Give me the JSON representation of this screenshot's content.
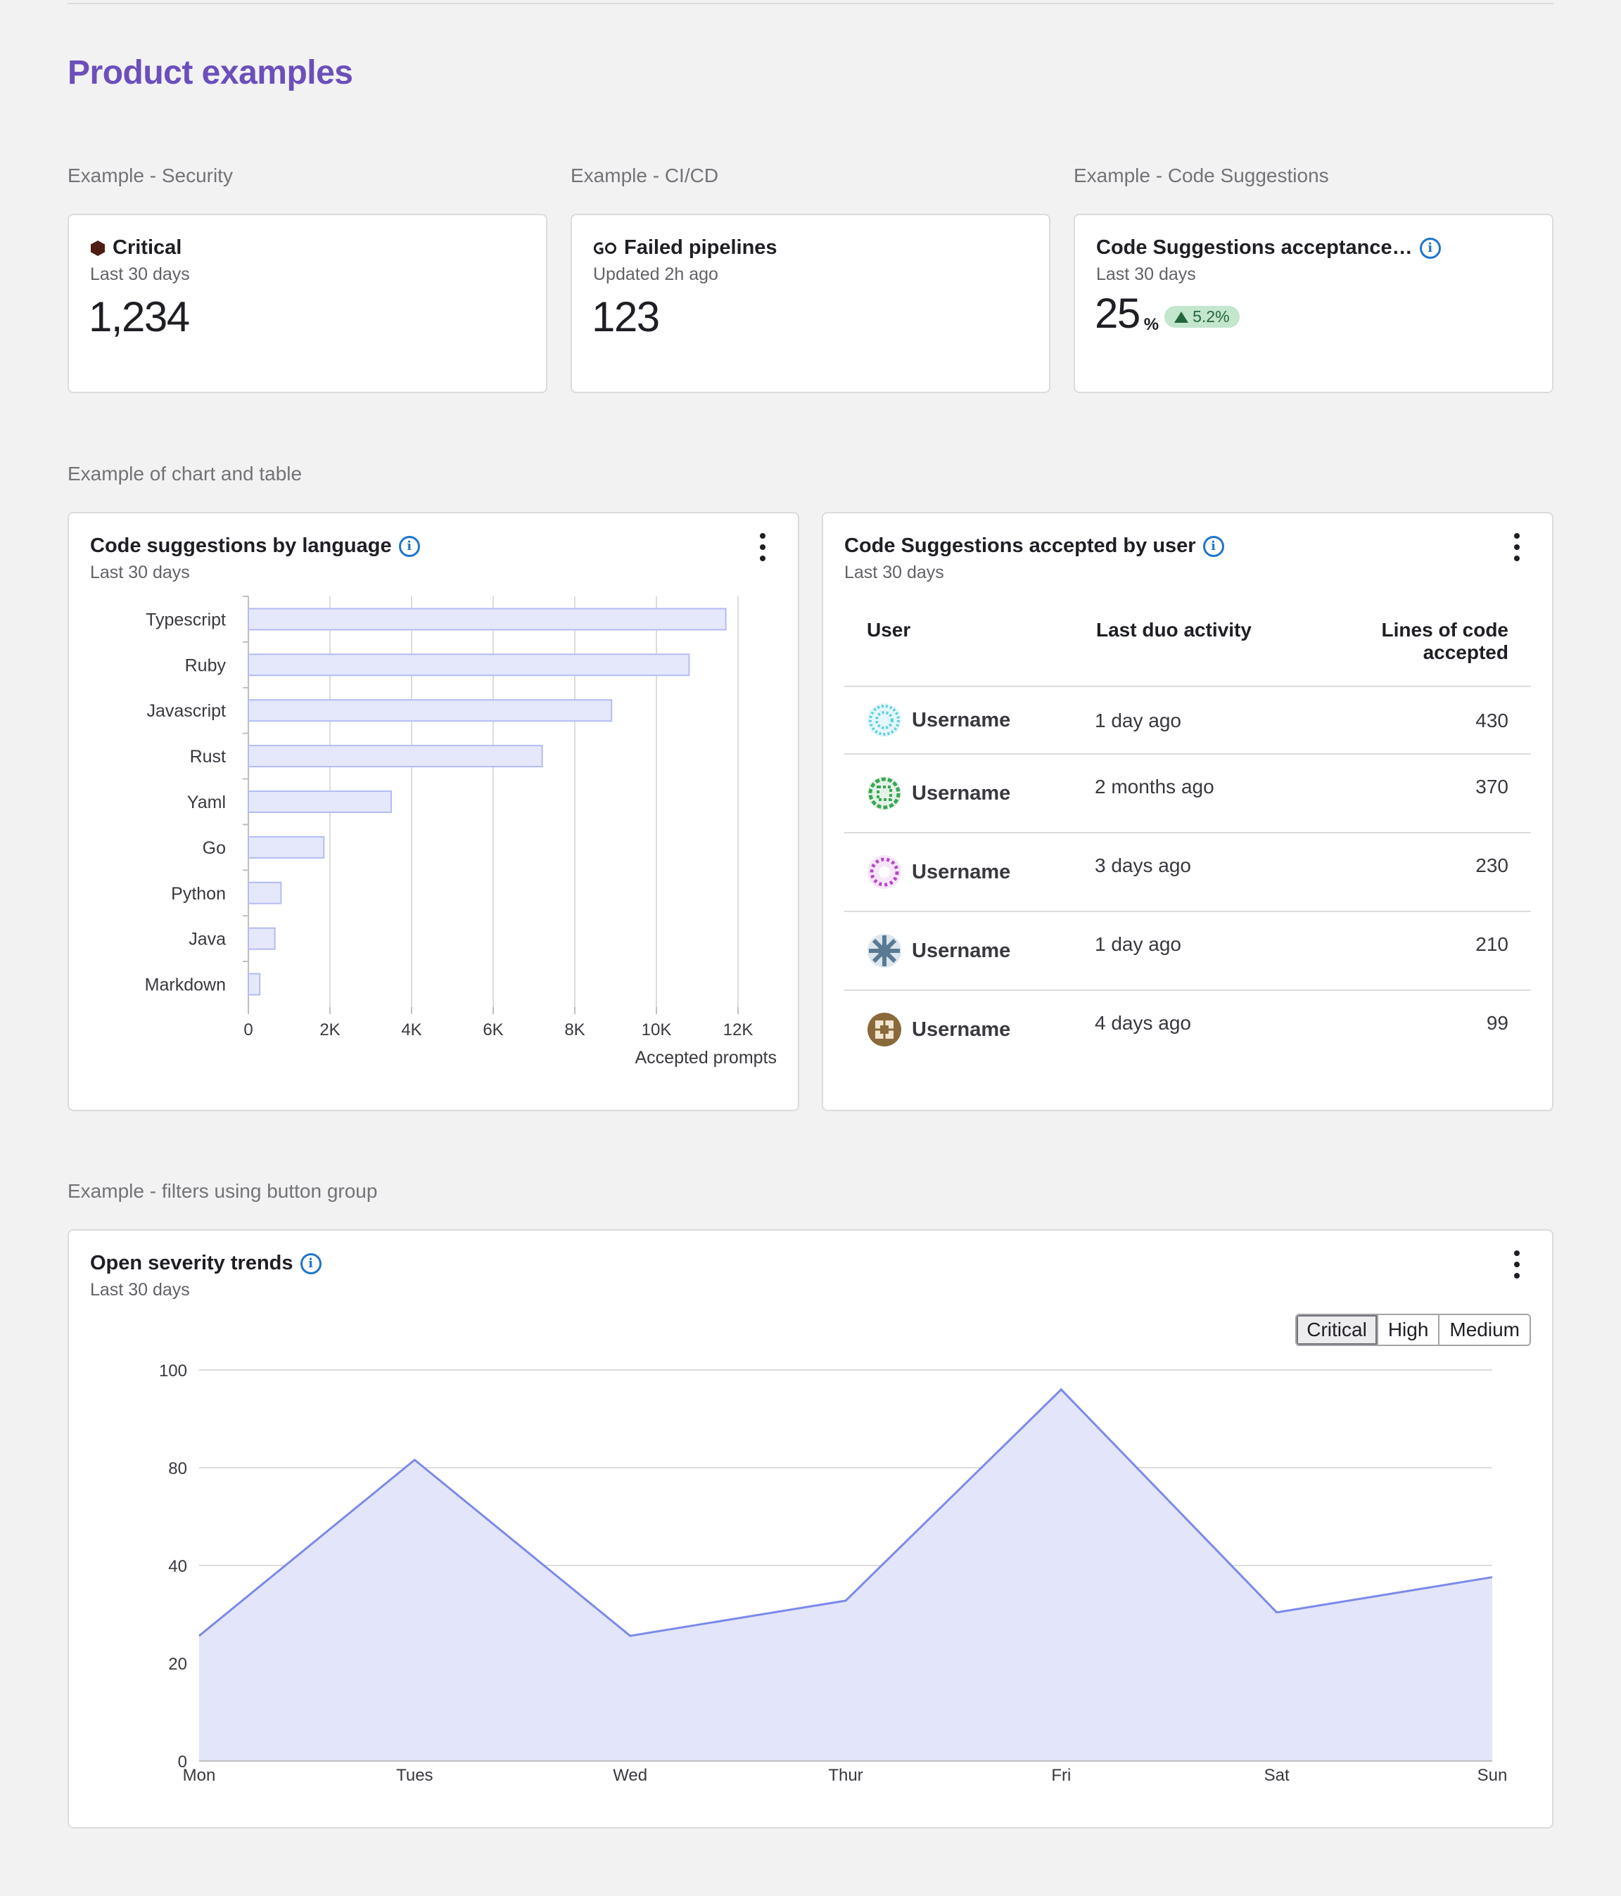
{
  "page": {
    "title": "Product examples"
  },
  "sections": {
    "security": "Example - Security",
    "cicd": "Example - CI/CD",
    "code_suggestions": "Example - Code Suggestions",
    "chart_table": "Example of chart and table",
    "filters": "Example - filters using button group"
  },
  "cards": {
    "critical": {
      "title": "Critical",
      "subtitle": "Last 30 days",
      "value": "1,234",
      "icon": "critical-severity-icon",
      "icon_color": "#4f1d13"
    },
    "pipelines": {
      "title": "Failed pipelines",
      "subtitle": "Updated 2h ago",
      "value": "123",
      "icon": "pipeline-icon"
    },
    "acceptance": {
      "title": "Code Suggestions acceptance…",
      "subtitle": "Last 30 days",
      "value": "25",
      "unit": "%",
      "delta": "5.2%",
      "delta_color": "#24663b"
    }
  },
  "colors": {
    "accent": "#6b4fbb",
    "bar_fill": "#e5e8fb",
    "bar_stroke": "#b4bcf4",
    "line": "#7b8ae9",
    "area": "#e3e6fa"
  },
  "bar_card": {
    "title": "Code suggestions by language",
    "subtitle": "Last 30 days"
  },
  "table_card": {
    "title": "Code Suggestions accepted by user",
    "subtitle": "Last 30 days",
    "columns": {
      "user": "User",
      "activity": "Last duo activity",
      "lines_1": "Lines of code",
      "lines_2": "accepted"
    },
    "rows": [
      {
        "user": "Username",
        "activity": "1 day ago",
        "lines": "430",
        "avatar_color": "#5ecfe6"
      },
      {
        "user": "Username",
        "activity": "2 months ago",
        "lines": "370",
        "avatar_color": "#3aa655"
      },
      {
        "user": "Username",
        "activity": "3 days ago",
        "lines": "230",
        "avatar_color": "#b44ac4"
      },
      {
        "user": "Username",
        "activity": "1 day ago",
        "lines": "210",
        "avatar_color": "#5a7a94"
      },
      {
        "user": "Username",
        "activity": "4 days ago",
        "lines": "99",
        "avatar_color": "#8a6a3a"
      }
    ]
  },
  "trend_card": {
    "title": "Open severity trends",
    "subtitle": "Last 30 days",
    "filters": [
      "Critical",
      "High",
      "Medium"
    ],
    "active_filter": "Critical"
  },
  "chart_data": [
    {
      "type": "bar",
      "orientation": "horizontal",
      "categories": [
        "Typescript",
        "Ruby",
        "Javascript",
        "Rust",
        "Yaml",
        "Go",
        "Python",
        "Java",
        "Markdown"
      ],
      "values": [
        11700,
        10800,
        8900,
        7200,
        3500,
        1850,
        800,
        650,
        280
      ],
      "xlabel": "Accepted prompts",
      "xlim": [
        0,
        12000
      ],
      "xticks": [
        "0",
        "2K",
        "4K",
        "6K",
        "8K",
        "10K",
        "12K"
      ],
      "grid": true
    },
    {
      "type": "area",
      "categories": [
        "Mon",
        "Tues",
        "Wed",
        "Thur",
        "Fri",
        "Sat",
        "Sun"
      ],
      "values": [
        32,
        77,
        32,
        41,
        95,
        38,
        47
      ],
      "yticks": [
        "0",
        "20",
        "40",
        "80",
        "100"
      ],
      "ylim": [
        0,
        100
      ],
      "grid": true
    }
  ]
}
